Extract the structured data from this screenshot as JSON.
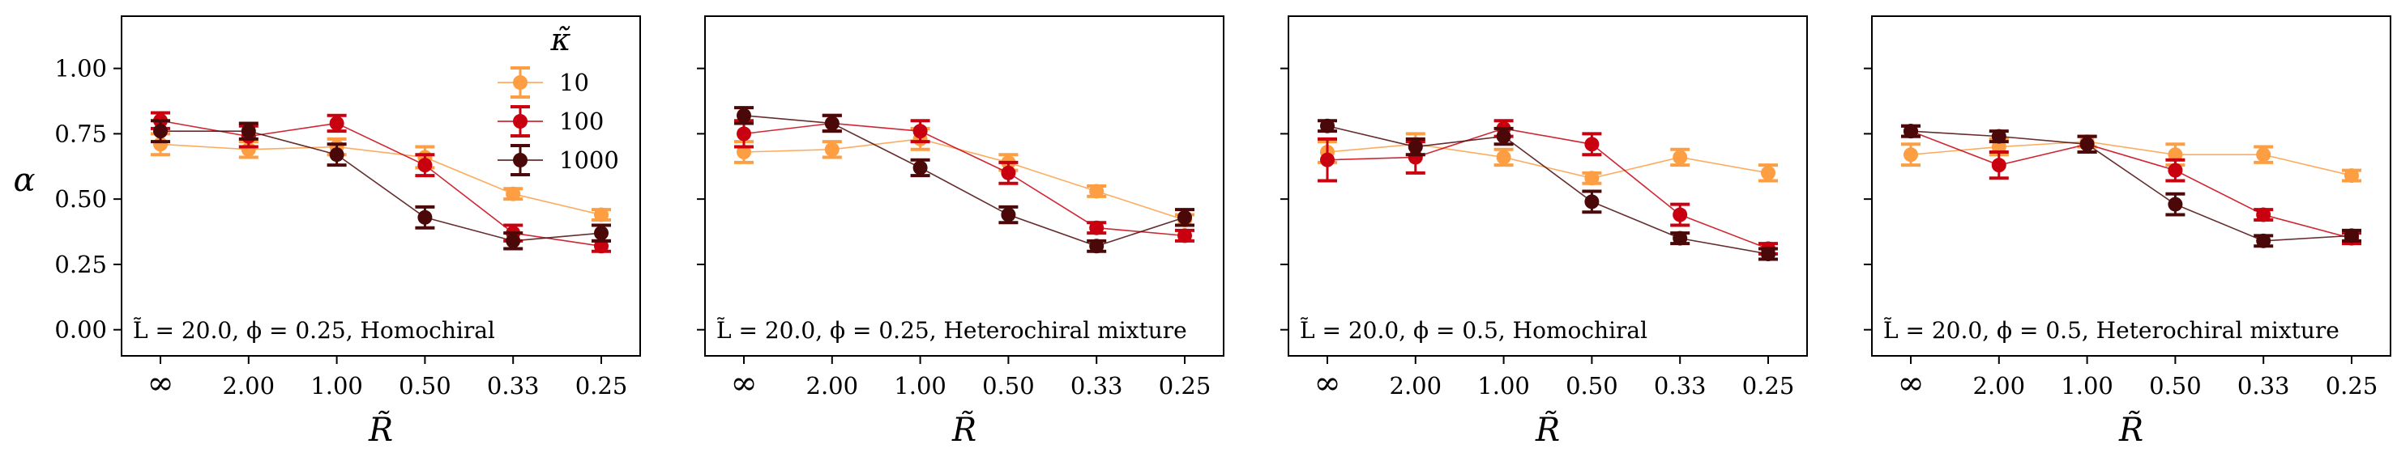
{
  "figure": {
    "ylabel": "α",
    "xlabel": "R̃"
  },
  "legend": {
    "title": "κ̃",
    "entries": [
      {
        "label": "10",
        "color": "#fd9e43"
      },
      {
        "label": "100",
        "color": "#c8000f"
      },
      {
        "label": "1000",
        "color": "#4a0808"
      }
    ]
  },
  "chart_data": [
    {
      "type": "line",
      "annotation": "L̃ = 20.0, ϕ = 0.25, Homochiral",
      "categories": [
        "∞",
        "2.00",
        "1.00",
        "0.50",
        "0.33",
        "0.25"
      ],
      "xlabel": "R̃",
      "ylabel": "α",
      "ylim": [
        -0.1,
        1.2
      ],
      "yticks": [
        "0.00",
        "0.25",
        "0.50",
        "0.75",
        "1.00"
      ],
      "legend_position": "top-right",
      "series": [
        {
          "name": "10",
          "color": "#fd9e43",
          "values": [
            0.71,
            0.69,
            0.7,
            0.66,
            0.52,
            0.44
          ],
          "errors": [
            0.04,
            0.03,
            0.03,
            0.04,
            0.02,
            0.02
          ]
        },
        {
          "name": "100",
          "color": "#c8000f",
          "values": [
            0.8,
            0.74,
            0.79,
            0.63,
            0.37,
            0.32
          ],
          "errors": [
            0.03,
            0.04,
            0.03,
            0.04,
            0.03,
            0.02
          ]
        },
        {
          "name": "1000",
          "color": "#4a0808",
          "values": [
            0.76,
            0.76,
            0.67,
            0.43,
            0.34,
            0.37
          ],
          "errors": [
            0.04,
            0.03,
            0.04,
            0.04,
            0.03,
            0.03
          ]
        }
      ]
    },
    {
      "type": "line",
      "annotation": "L̃ = 20.0, ϕ = 0.25, Heterochiral mixture",
      "categories": [
        "∞",
        "2.00",
        "1.00",
        "0.50",
        "0.33",
        "0.25"
      ],
      "xlabel": "R̃",
      "ylabel": "α",
      "ylim": [
        -0.1,
        1.2
      ],
      "yticks": [
        "0.00",
        "0.25",
        "0.50",
        "0.75",
        "1.00"
      ],
      "series": [
        {
          "name": "10",
          "color": "#fd9e43",
          "values": [
            0.68,
            0.69,
            0.73,
            0.64,
            0.53,
            0.42
          ],
          "errors": [
            0.04,
            0.03,
            0.04,
            0.03,
            0.02,
            0.02
          ]
        },
        {
          "name": "100",
          "color": "#c8000f",
          "values": [
            0.75,
            0.79,
            0.76,
            0.6,
            0.39,
            0.36
          ],
          "errors": [
            0.05,
            0.03,
            0.04,
            0.04,
            0.02,
            0.02
          ]
        },
        {
          "name": "1000",
          "color": "#4a0808",
          "values": [
            0.82,
            0.79,
            0.62,
            0.44,
            0.32,
            0.43
          ],
          "errors": [
            0.03,
            0.03,
            0.03,
            0.03,
            0.02,
            0.03
          ]
        }
      ]
    },
    {
      "type": "line",
      "annotation": "L̃ = 20.0, ϕ = 0.5, Homochiral",
      "categories": [
        "∞",
        "2.00",
        "1.00",
        "0.50",
        "0.33",
        "0.25"
      ],
      "xlabel": "R̃",
      "ylabel": "α",
      "ylim": [
        -0.1,
        1.2
      ],
      "yticks": [
        "0.00",
        "0.25",
        "0.50",
        "0.75",
        "1.00"
      ],
      "series": [
        {
          "name": "10",
          "color": "#fd9e43",
          "values": [
            0.68,
            0.71,
            0.66,
            0.58,
            0.66,
            0.6
          ],
          "errors": [
            0.04,
            0.04,
            0.03,
            0.02,
            0.03,
            0.03
          ]
        },
        {
          "name": "100",
          "color": "#c8000f",
          "values": [
            0.65,
            0.66,
            0.77,
            0.71,
            0.44,
            0.31
          ],
          "errors": [
            0.08,
            0.06,
            0.03,
            0.04,
            0.04,
            0.02
          ]
        },
        {
          "name": "1000",
          "color": "#4a0808",
          "values": [
            0.78,
            0.7,
            0.74,
            0.49,
            0.35,
            0.29
          ],
          "errors": [
            0.02,
            0.03,
            0.03,
            0.04,
            0.02,
            0.02
          ]
        }
      ]
    },
    {
      "type": "line",
      "annotation": "L̃ = 20.0, ϕ = 0.5, Heterochiral mixture",
      "categories": [
        "∞",
        "2.00",
        "1.00",
        "0.50",
        "0.33",
        "0.25"
      ],
      "xlabel": "R̃",
      "ylabel": "α",
      "ylim": [
        -0.1,
        1.2
      ],
      "yticks": [
        "0.00",
        "0.25",
        "0.50",
        "0.75",
        "1.00"
      ],
      "series": [
        {
          "name": "10",
          "color": "#fd9e43",
          "values": [
            0.67,
            0.7,
            0.72,
            0.67,
            0.67,
            0.59
          ],
          "errors": [
            0.04,
            0.03,
            0.02,
            0.04,
            0.03,
            0.02
          ]
        },
        {
          "name": "100",
          "color": "#c8000f",
          "values": [
            0.76,
            0.63,
            0.71,
            0.61,
            0.44,
            0.35
          ],
          "errors": [
            0.02,
            0.05,
            0.03,
            0.04,
            0.02,
            0.02
          ]
        },
        {
          "name": "1000",
          "color": "#4a0808",
          "values": [
            0.76,
            0.74,
            0.71,
            0.48,
            0.34,
            0.36
          ],
          "errors": [
            0.02,
            0.02,
            0.03,
            0.04,
            0.02,
            0.02
          ]
        }
      ]
    }
  ]
}
